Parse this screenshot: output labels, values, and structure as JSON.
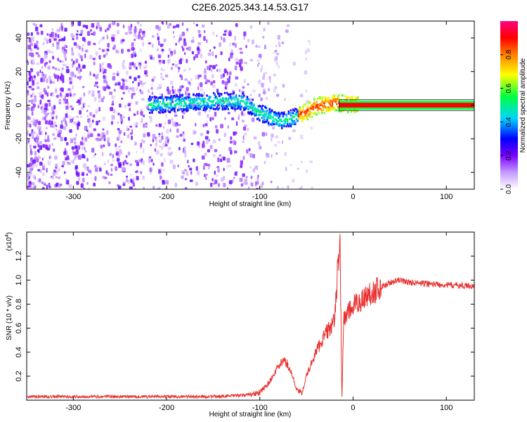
{
  "title": "C2E6.2025.343.14.53.G17",
  "chart_data": [
    {
      "type": "heatmap",
      "title": "C2E6.2025.343.14.53.G17",
      "xlabel": "Height of straight line (km)",
      "ylabel": "Frequency (Hz)",
      "xlim": [
        -350,
        130
      ],
      "ylim": [
        -50,
        50
      ],
      "xticks": [
        -300,
        -200,
        -100,
        0,
        100
      ],
      "yticks": [
        -40,
        -20,
        0,
        20,
        40
      ],
      "colorbar": {
        "label": "Normalized spectral amplitude",
        "range": [
          0,
          1
        ],
        "ticks": [
          "0.0",
          "0.2",
          "0.4",
          "0.6",
          "0.8"
        ],
        "colors": [
          "#ffffff",
          "#8a2be2",
          "#0000ff",
          "#00ffff",
          "#00ff00",
          "#ffff00",
          "#ff8000",
          "#ff0000",
          "#ff00ff"
        ]
      },
      "ridge": {
        "description_points_km_hz": [
          [
            -210,
            1
          ],
          [
            -150,
            3
          ],
          [
            -120,
            3
          ],
          [
            -100,
            -4
          ],
          [
            -80,
            -9
          ],
          [
            -60,
            -6
          ],
          [
            -40,
            0
          ],
          [
            -20,
            2
          ],
          [
            0,
            1
          ],
          [
            130,
            0
          ]
        ],
        "strong_line_from_km": -15,
        "strong_line_freq_hz": 0
      }
    },
    {
      "type": "line",
      "xlabel": "Height of straight line (km)",
      "ylabel": "SNR (10 * v/v)",
      "yscale_label": "(x10",
      "yscale_exp": "4",
      "yscale_close": ")",
      "xlim": [
        -350,
        130
      ],
      "ylim": [
        0,
        1.4
      ],
      "xticks": [
        -300,
        -200,
        -100,
        0,
        100
      ],
      "yticks": [
        "0.2",
        "0.4",
        "0.6",
        "0.8",
        "1.0",
        "1.2"
      ],
      "series": [
        {
          "name": "SNR",
          "color": "#e8302f",
          "x": [
            -350,
            -300,
            -250,
            -200,
            -150,
            -120,
            -100,
            -90,
            -80,
            -75,
            -70,
            -65,
            -60,
            -55,
            -50,
            -40,
            -30,
            -20,
            -14,
            -12,
            -10,
            0,
            10,
            20,
            30,
            40,
            50,
            60,
            80,
            100,
            130
          ],
          "y": [
            0.03,
            0.03,
            0.03,
            0.03,
            0.03,
            0.04,
            0.06,
            0.15,
            0.28,
            0.33,
            0.3,
            0.2,
            0.08,
            0.06,
            0.2,
            0.4,
            0.55,
            0.65,
            1.38,
            0.0,
            0.68,
            0.78,
            0.84,
            0.9,
            0.94,
            0.98,
            1.0,
            0.98,
            0.97,
            0.96,
            0.95
          ]
        }
      ]
    }
  ]
}
